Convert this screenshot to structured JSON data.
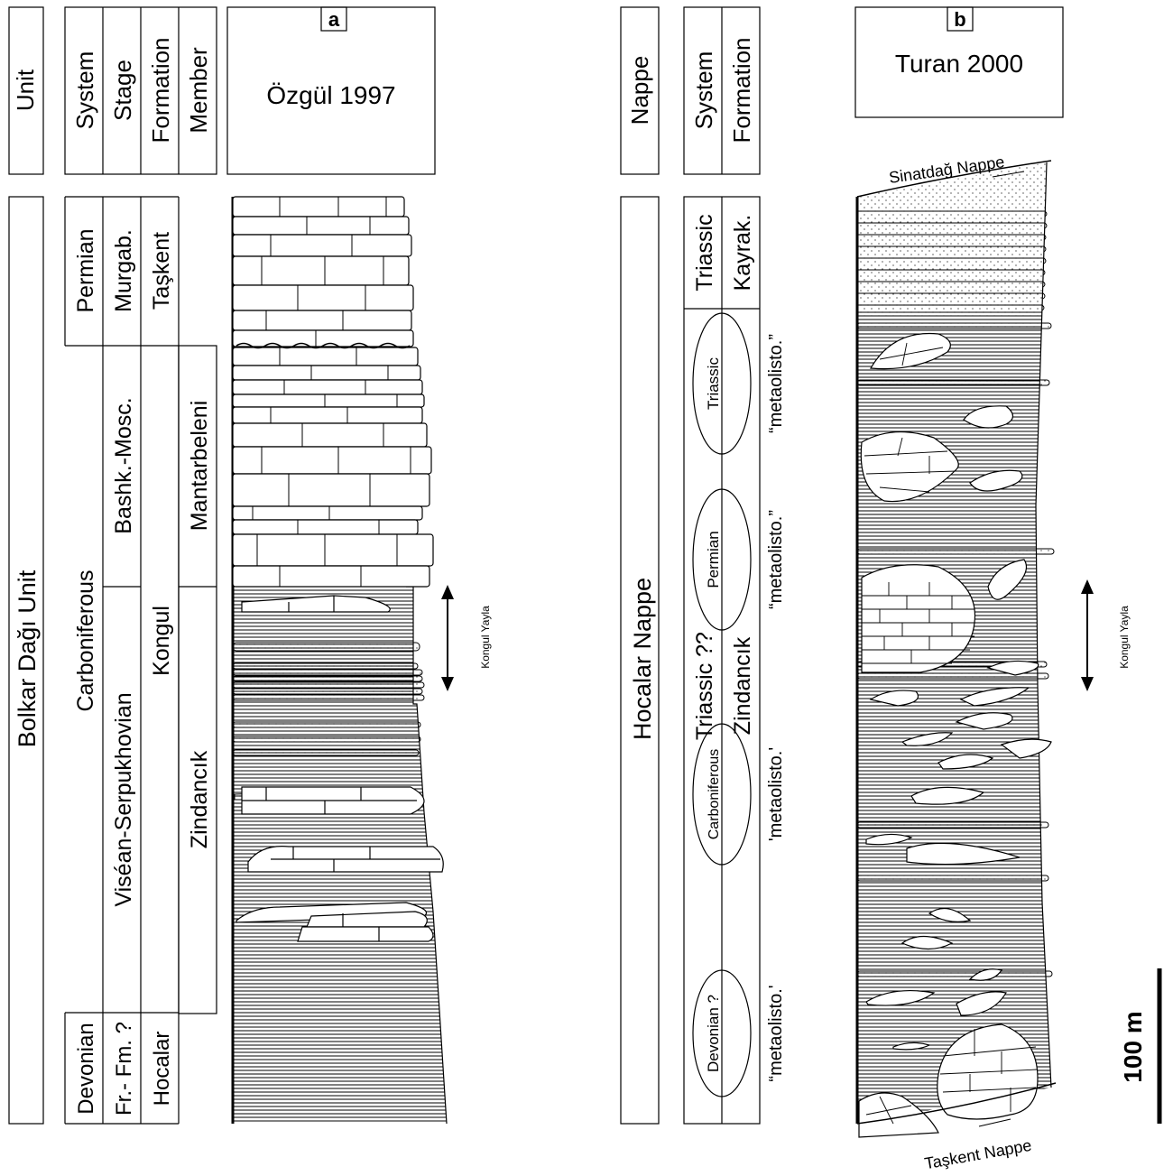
{
  "panel_a": {
    "letter": "a",
    "author": "Özgül 1997",
    "header_labels": {
      "unit": "Unit",
      "system": "System",
      "stage": "Stage",
      "formation": "Formation",
      "member": "Member"
    },
    "unit": "Bolkar Dağı Unit",
    "systems": [
      "Permian",
      "Carboniferous",
      "Devonian"
    ],
    "stages": [
      "Murgab.",
      "Bashk.-Mosc.",
      "Viséan-Serpukhovian",
      "Fr.- Fm. ?"
    ],
    "formations": [
      "Taşkent",
      "Kongul",
      "Hocalar"
    ],
    "members": [
      "Mantarbeleni",
      "Zindancık"
    ],
    "locality": "Kongul Yayla"
  },
  "panel_b": {
    "letter": "b",
    "author": "Turan 2000",
    "header_labels": {
      "nappe": "Nappe",
      "system": "System",
      "formation": "Formation"
    },
    "nappe": "Hocalar Nappe",
    "systems": [
      "Triassic",
      "Triassic ??"
    ],
    "formations": [
      "Kayrak.",
      "Zindancık"
    ],
    "olistoliths": [
      {
        "age": "Triassic",
        "name": "“metaolisto.”"
      },
      {
        "age": "Permian",
        "name": "“metaolisto.”"
      },
      {
        "age": "Carboniferous",
        "name": "'metaolisto.'"
      },
      {
        "age": "Devonian ?",
        "name": "“metaolisto.'"
      }
    ],
    "top_contact": "Sinatdağ Nappe",
    "bottom_contact": "Taşkent Nappe",
    "locality": "Kongul Yayla"
  },
  "scale_bar": "100 m"
}
